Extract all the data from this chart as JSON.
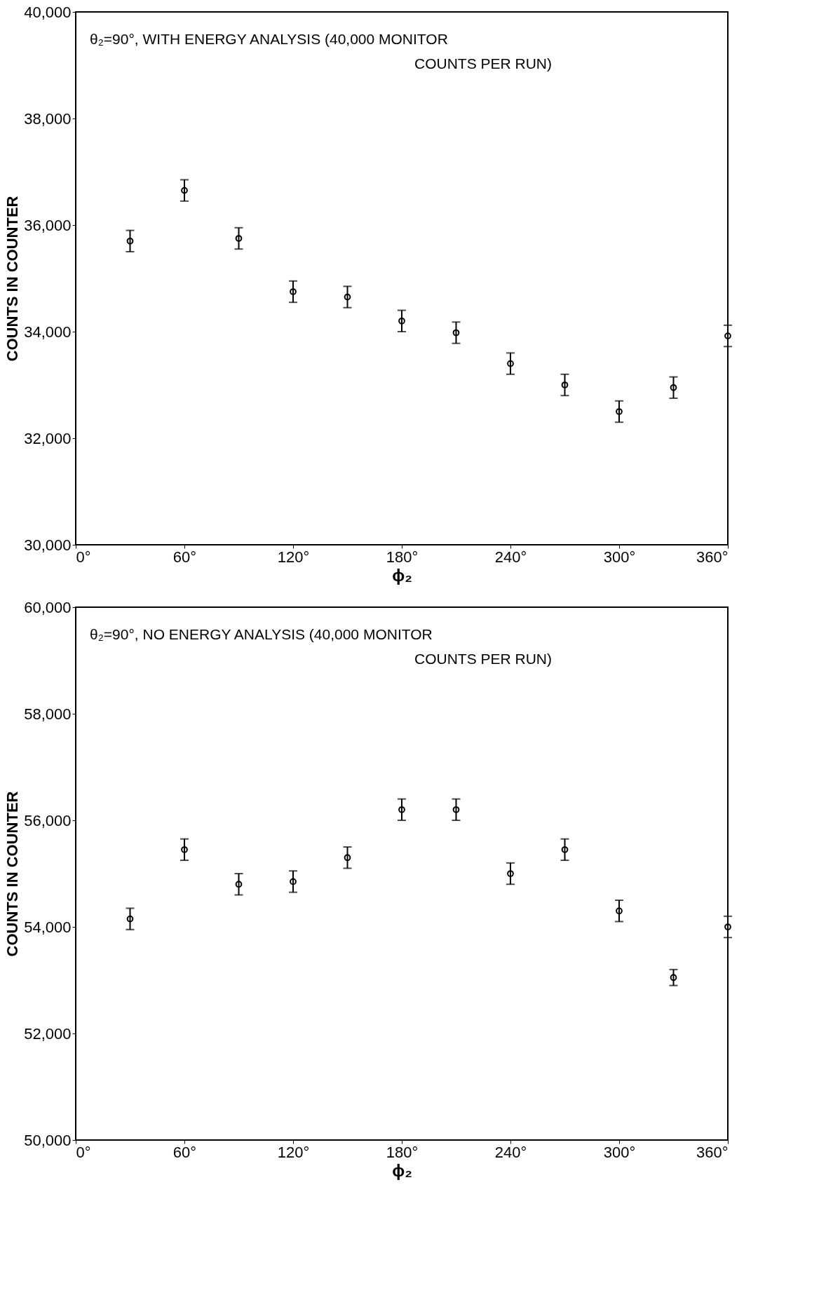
{
  "chart_data": [
    {
      "type": "scatter",
      "xlabel": "ϕ₂",
      "ylabel": "COUNTS IN COUNTER",
      "annotations": [
        "θ₂=90°, WITH ENERGY ANALYSIS (40,000 MONITOR",
        "COUNTS PER RUN)"
      ],
      "marker": "circle",
      "grid": false,
      "x": [
        30,
        60,
        90,
        120,
        150,
        180,
        210,
        240,
        270,
        300,
        330,
        360
      ],
      "series": [
        {
          "color": "#000000",
          "values": [
            35700,
            36650,
            35750,
            34750,
            34650,
            34200,
            33980,
            33400,
            33000,
            32500,
            32950,
            33920
          ],
          "errors": [
            200,
            200,
            200,
            200,
            200,
            200,
            200,
            200,
            200,
            200,
            200,
            200
          ]
        }
      ],
      "xlim": [
        0,
        360
      ],
      "xticks": [
        {
          "value": 0,
          "label": "0°"
        },
        {
          "value": 60,
          "label": "60°"
        },
        {
          "value": 120,
          "label": "120°"
        },
        {
          "value": 180,
          "label": "180°"
        },
        {
          "value": 240,
          "label": "240°"
        },
        {
          "value": 300,
          "label": "300°"
        },
        {
          "value": 360,
          "label": "360°"
        }
      ],
      "ylim": [
        30000,
        40000
      ],
      "yticks": [
        {
          "value": 30000,
          "label": "30,000"
        },
        {
          "value": 32000,
          "label": "32,000"
        },
        {
          "value": 34000,
          "label": "34,000"
        },
        {
          "value": 36000,
          "label": "36,000"
        },
        {
          "value": 38000,
          "label": "38,000"
        },
        {
          "value": 40000,
          "label": "40,000"
        }
      ]
    },
    {
      "type": "scatter",
      "xlabel": "ϕ₂",
      "ylabel": "COUNTS IN COUNTER",
      "annotations": [
        "θ₂=90°, NO ENERGY ANALYSIS (40,000 MONITOR",
        "COUNTS PER RUN)"
      ],
      "marker": "circle",
      "grid": false,
      "x": [
        30,
        60,
        90,
        120,
        150,
        180,
        210,
        240,
        270,
        300,
        330,
        360
      ],
      "series": [
        {
          "color": "#000000",
          "values": [
            54150,
            55450,
            54800,
            54850,
            55300,
            56200,
            56200,
            55000,
            55450,
            54300,
            53050,
            54000
          ],
          "errors": [
            200,
            200,
            200,
            200,
            200,
            200,
            200,
            200,
            200,
            200,
            150,
            200
          ]
        }
      ],
      "xlim": [
        0,
        360
      ],
      "xticks": [
        {
          "value": 0,
          "label": "0°"
        },
        {
          "value": 60,
          "label": "60°"
        },
        {
          "value": 120,
          "label": "120°"
        },
        {
          "value": 180,
          "label": "180°"
        },
        {
          "value": 240,
          "label": "240°"
        },
        {
          "value": 300,
          "label": "300°"
        },
        {
          "value": 360,
          "label": "360°"
        }
      ],
      "ylim": [
        50000,
        60000
      ],
      "yticks": [
        {
          "value": 50000,
          "label": "50,000"
        },
        {
          "value": 52000,
          "label": "52,000"
        },
        {
          "value": 54000,
          "label": "54,000"
        },
        {
          "value": 56000,
          "label": "56,000"
        },
        {
          "value": 58000,
          "label": "58,000"
        },
        {
          "value": 60000,
          "label": "60,000"
        }
      ]
    }
  ]
}
